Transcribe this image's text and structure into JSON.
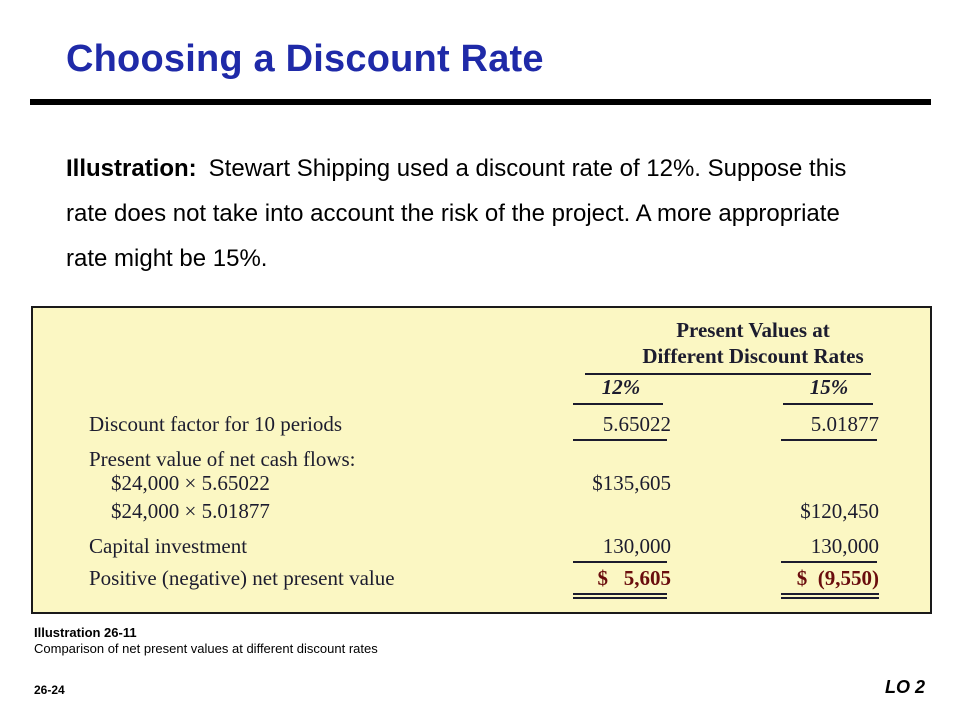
{
  "slide": {
    "title": "Choosing a Discount Rate",
    "intro_lead": "Illustration:",
    "intro_text": "Stewart Shipping used a discount rate of 12%. Suppose this rate does not take into account the risk of the project. A more appropriate rate might be 15%."
  },
  "table": {
    "header_line1": "Present Values at",
    "header_line2": "Different Discount Rates",
    "columns": [
      "12%",
      "15%"
    ],
    "rows": {
      "discount_factor": {
        "label": "Discount factor for 10 periods",
        "c1": "5.65022",
        "c2": "5.01877"
      },
      "pv_header": {
        "label": "Present value of net cash flows:"
      },
      "pv_row1": {
        "label": "$24,000 × 5.65022",
        "c1": "$135,605"
      },
      "pv_row2": {
        "label": "$24,000 × 5.01877",
        "c2": "$120,450"
      },
      "capital": {
        "label": "Capital investment",
        "c1": "130,000",
        "c2": "130,000"
      },
      "npv": {
        "label": "Positive (negative) net present value",
        "c1": "$   5,605",
        "c2": "$  (9,550)"
      }
    }
  },
  "caption": {
    "title": "Illustration 26-11",
    "text": "Comparison of net present values at different discount rates"
  },
  "footer": {
    "page": "26-24",
    "lo": "LO 2"
  },
  "colors": {
    "title": "#1f2aa8",
    "panel_bg": "#fbf7c3",
    "negative": "#6a0d0d"
  }
}
